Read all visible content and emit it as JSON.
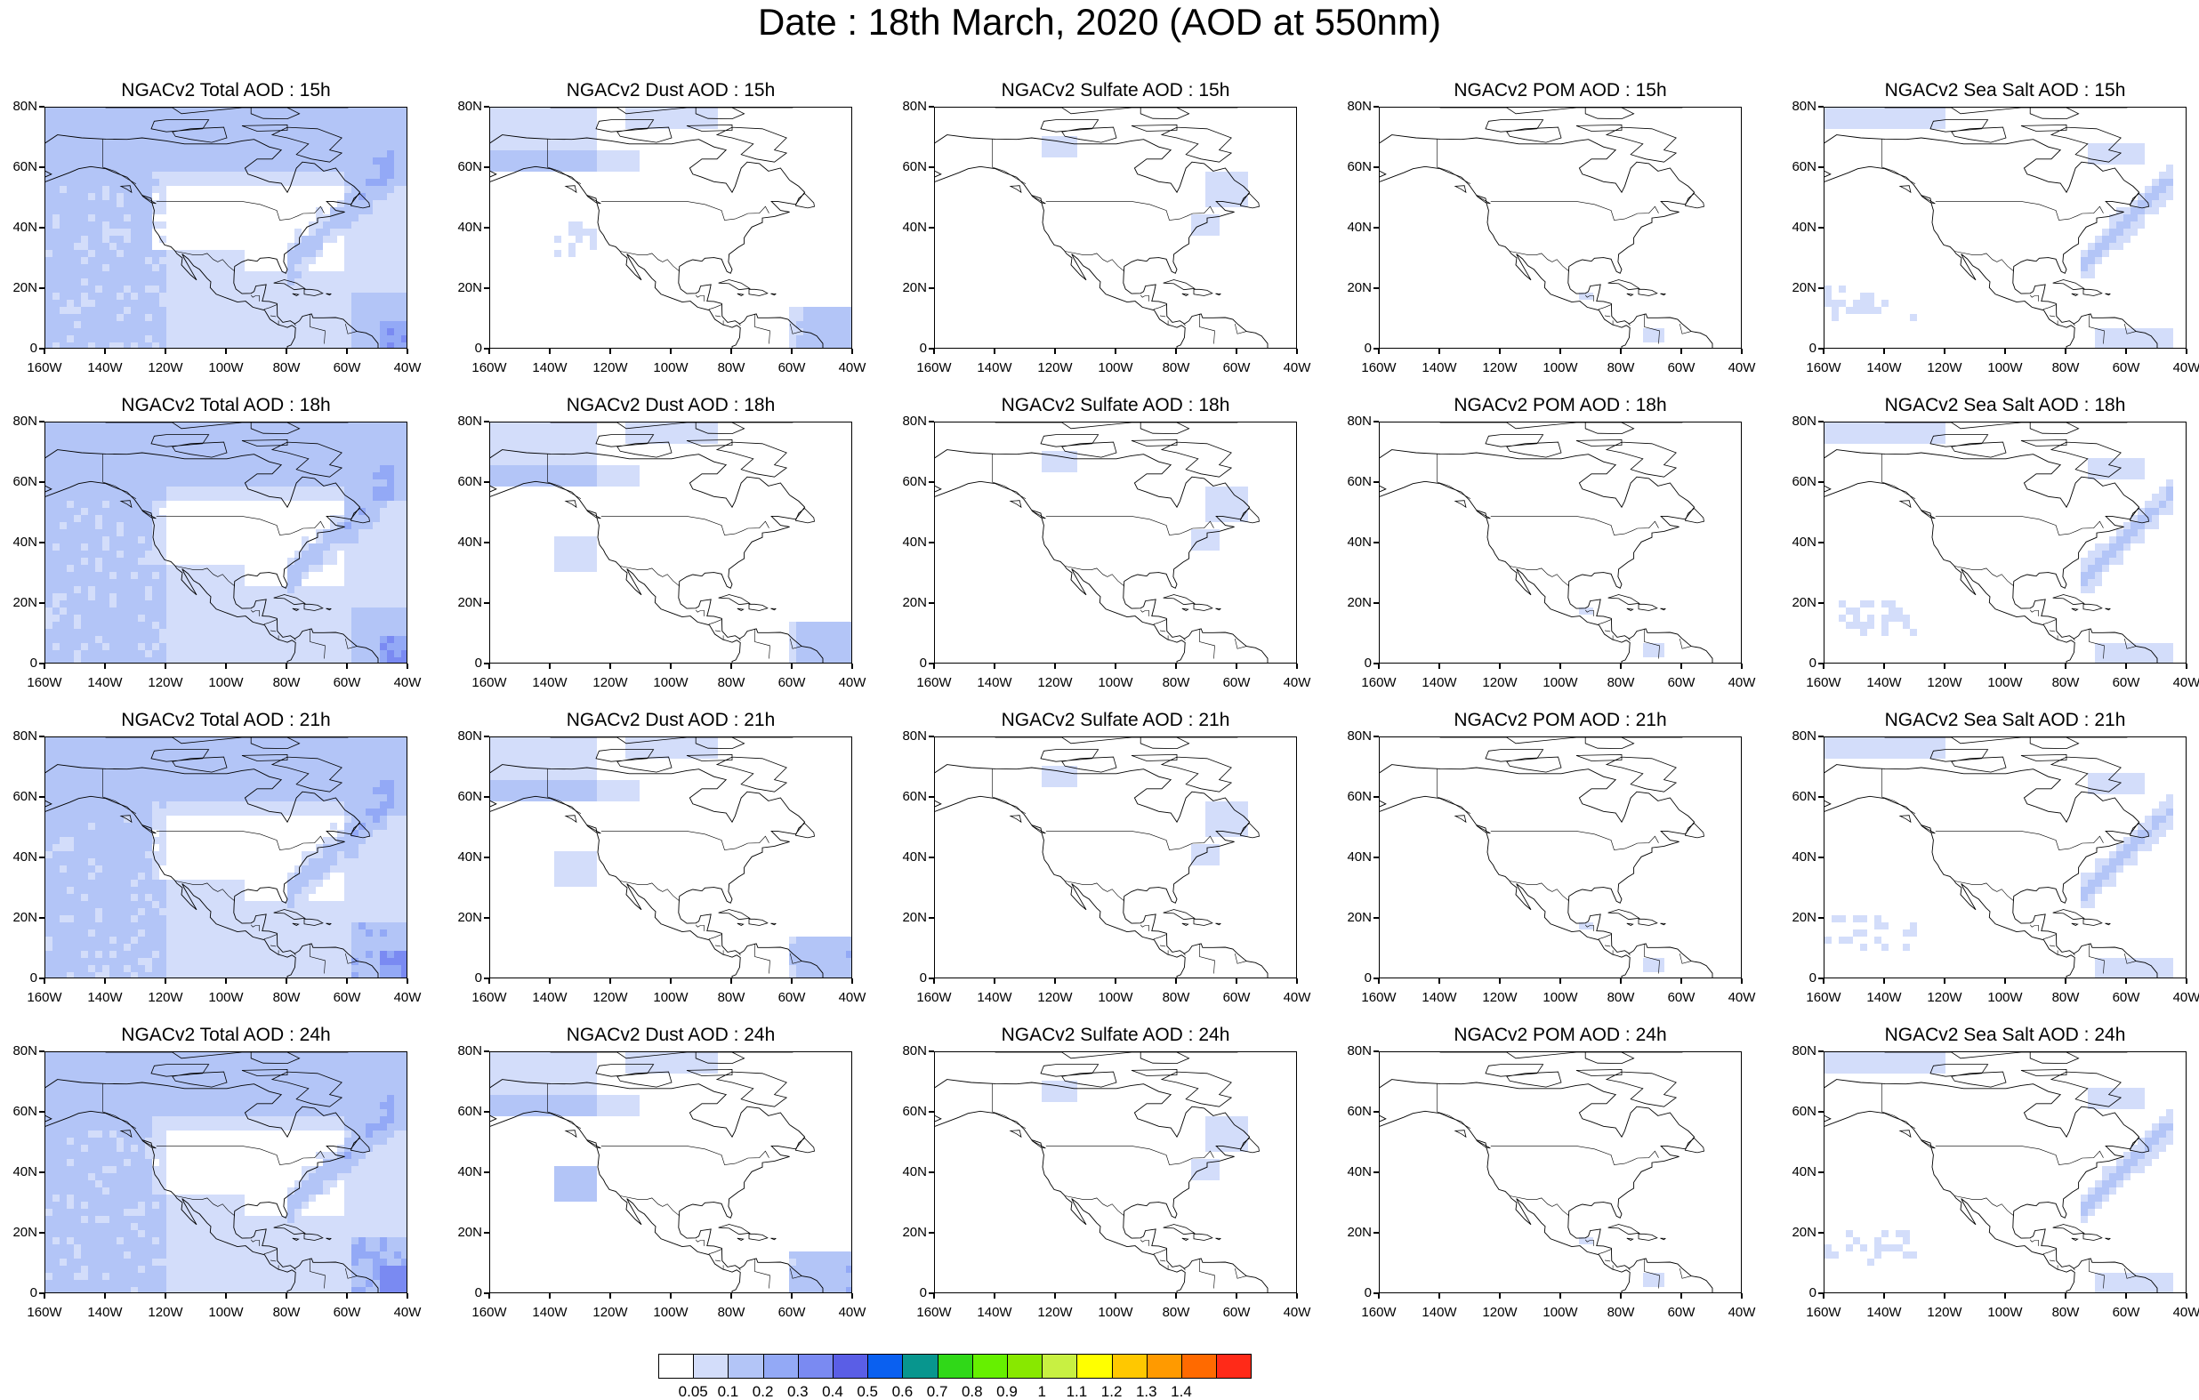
{
  "title": "Date : 18th March, 2020 (AOD at 550nm)",
  "lat_labels": [
    "80N",
    "60N",
    "40N",
    "20N",
    "0"
  ],
  "lon_labels": [
    "160W",
    "140W",
    "120W",
    "100W",
    "80W",
    "60W",
    "40W"
  ],
  "panels": [
    {
      "title": "NGACv2 Total AOD : 15h",
      "species": "total"
    },
    {
      "title": "NGACv2 Dust AOD : 15h",
      "species": "dust"
    },
    {
      "title": "NGACv2 Sulfate AOD : 15h",
      "species": "sulfate"
    },
    {
      "title": "NGACv2 POM AOD : 15h",
      "species": "pom"
    },
    {
      "title": "NGACv2 Sea Salt AOD : 15h",
      "species": "seasalt"
    },
    {
      "title": "NGACv2 Total AOD : 18h",
      "species": "total"
    },
    {
      "title": "NGACv2 Dust AOD : 18h",
      "species": "dust"
    },
    {
      "title": "NGACv2 Sulfate AOD : 18h",
      "species": "sulfate"
    },
    {
      "title": "NGACv2 POM AOD : 18h",
      "species": "pom"
    },
    {
      "title": "NGACv2 Sea Salt AOD : 18h",
      "species": "seasalt"
    },
    {
      "title": "NGACv2 Total AOD : 21h",
      "species": "total"
    },
    {
      "title": "NGACv2 Dust AOD : 21h",
      "species": "dust"
    },
    {
      "title": "NGACv2 Sulfate AOD : 21h",
      "species": "sulfate"
    },
    {
      "title": "NGACv2 POM AOD : 21h",
      "species": "pom"
    },
    {
      "title": "NGACv2 Sea Salt AOD : 21h",
      "species": "seasalt"
    },
    {
      "title": "NGACv2 Total AOD : 24h",
      "species": "total"
    },
    {
      "title": "NGACv2 Dust AOD : 24h",
      "species": "dust"
    },
    {
      "title": "NGACv2 Sulfate AOD : 24h",
      "species": "sulfate"
    },
    {
      "title": "NGACv2 POM AOD : 24h",
      "species": "pom"
    },
    {
      "title": "NGACv2 Sea Salt  AOD : 24h",
      "species": "seasalt"
    }
  ],
  "colorbar": {
    "labels": [
      "0.05",
      "0.1",
      "0.2",
      "0.3",
      "0.4",
      "0.5",
      "0.6",
      "0.7",
      "0.8",
      "0.9",
      "1",
      "1.1",
      "1.2",
      "1.3",
      "1.4"
    ],
    "colors": [
      "#ffffff",
      "#d3ddfa",
      "#b3c5f7",
      "#93a9f6",
      "#7a8af2",
      "#5a5ee6",
      "#0a60f0",
      "#08968e",
      "#30d818",
      "#66f000",
      "#88e800",
      "#c8f042",
      "#ffff00",
      "#ffc800",
      "#ff9a00",
      "#ff6a00",
      "#ff2a18"
    ]
  }
}
